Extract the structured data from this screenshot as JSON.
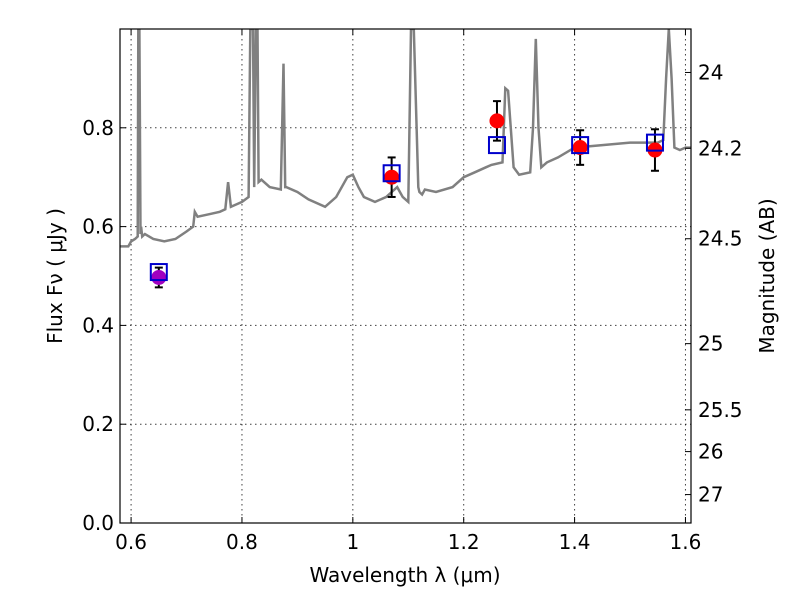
{
  "chart_data": {
    "type": "scatter",
    "xlabel": "Wavelength  λ (μm)",
    "ylabel": "Flux  Fν  ( μJy )",
    "y2label": "Magnitude (AB)",
    "xlim": [
      0.58,
      1.61
    ],
    "ylim": [
      0.0,
      1.0
    ],
    "xticks": [
      0.6,
      0.8,
      1.0,
      1.2,
      1.4,
      1.6
    ],
    "xtick_labels": [
      "0.6",
      "0.8",
      "1",
      "1.2",
      "1.4",
      "1.6"
    ],
    "yticks": [
      0.0,
      0.2,
      0.4,
      0.6,
      0.8
    ],
    "ytick_labels": [
      "0.0",
      "0.2",
      "0.4",
      "0.6",
      "0.8"
    ],
    "y2ticks": [
      "24",
      "24.2",
      "24.5",
      "25",
      "25.5",
      "26",
      "27"
    ],
    "grid": true,
    "colors": {
      "model": "#808080",
      "observed": "#ff0000",
      "model_photometry": "#0000cc",
      "overlap": "#a000c0",
      "errorbar": "#000000"
    },
    "observed": {
      "x": [
        0.65,
        1.07,
        1.26,
        1.41,
        1.545
      ],
      "y": [
        0.497,
        0.7,
        0.814,
        0.76,
        0.755
      ],
      "yerr": [
        0.02,
        0.04,
        0.04,
        0.035,
        0.042
      ]
    },
    "model_photometry": {
      "x": [
        0.65,
        1.07,
        1.26,
        1.41,
        1.545
      ],
      "y": [
        0.508,
        0.708,
        0.765,
        0.765,
        0.77
      ]
    },
    "model_spectrum": {
      "x": [
        0.58,
        0.595,
        0.6,
        0.607,
        0.612,
        0.613,
        0.615,
        0.617,
        0.618,
        0.62,
        0.625,
        0.64,
        0.66,
        0.68,
        0.7,
        0.712,
        0.715,
        0.72,
        0.74,
        0.76,
        0.77,
        0.775,
        0.78,
        0.79,
        0.8,
        0.812,
        0.815,
        0.82,
        0.822,
        0.825,
        0.828,
        0.83,
        0.835,
        0.85,
        0.87,
        0.875,
        0.878,
        0.88,
        0.9,
        0.92,
        0.95,
        0.97,
        0.99,
        1.0,
        1.01,
        1.02,
        1.04,
        1.06,
        1.08,
        1.09,
        1.1,
        1.105,
        1.11,
        1.118,
        1.12,
        1.125,
        1.13,
        1.15,
        1.18,
        1.2,
        1.22,
        1.24,
        1.25,
        1.27,
        1.275,
        1.28,
        1.29,
        1.3,
        1.32,
        1.325,
        1.33,
        1.335,
        1.34,
        1.35,
        1.37,
        1.4,
        1.45,
        1.5,
        1.53,
        1.55,
        1.56,
        1.565,
        1.57,
        1.575,
        1.58,
        1.59,
        1.6,
        1.61
      ],
      "y": [
        0.56,
        0.56,
        0.57,
        0.575,
        0.58,
        1.0,
        1.0,
        0.585,
        0.6,
        0.58,
        0.585,
        0.575,
        0.57,
        0.575,
        0.59,
        0.6,
        0.63,
        0.62,
        0.625,
        0.63,
        0.635,
        0.69,
        0.64,
        0.645,
        0.65,
        0.66,
        1.0,
        1.0,
        0.68,
        1.0,
        1.0,
        0.69,
        0.695,
        0.68,
        0.675,
        0.93,
        0.68,
        0.68,
        0.67,
        0.655,
        0.64,
        0.66,
        0.7,
        0.705,
        0.68,
        0.66,
        0.65,
        0.66,
        0.68,
        0.66,
        0.65,
        1.0,
        1.0,
        0.68,
        0.67,
        0.665,
        0.675,
        0.67,
        0.68,
        0.7,
        0.71,
        0.72,
        0.725,
        0.73,
        0.88,
        0.875,
        0.72,
        0.705,
        0.71,
        0.8,
        0.98,
        0.8,
        0.72,
        0.73,
        0.74,
        0.76,
        0.765,
        0.77,
        0.77,
        0.77,
        0.775,
        0.9,
        1.0,
        0.9,
        0.76,
        0.755,
        0.76,
        0.76
      ]
    }
  }
}
